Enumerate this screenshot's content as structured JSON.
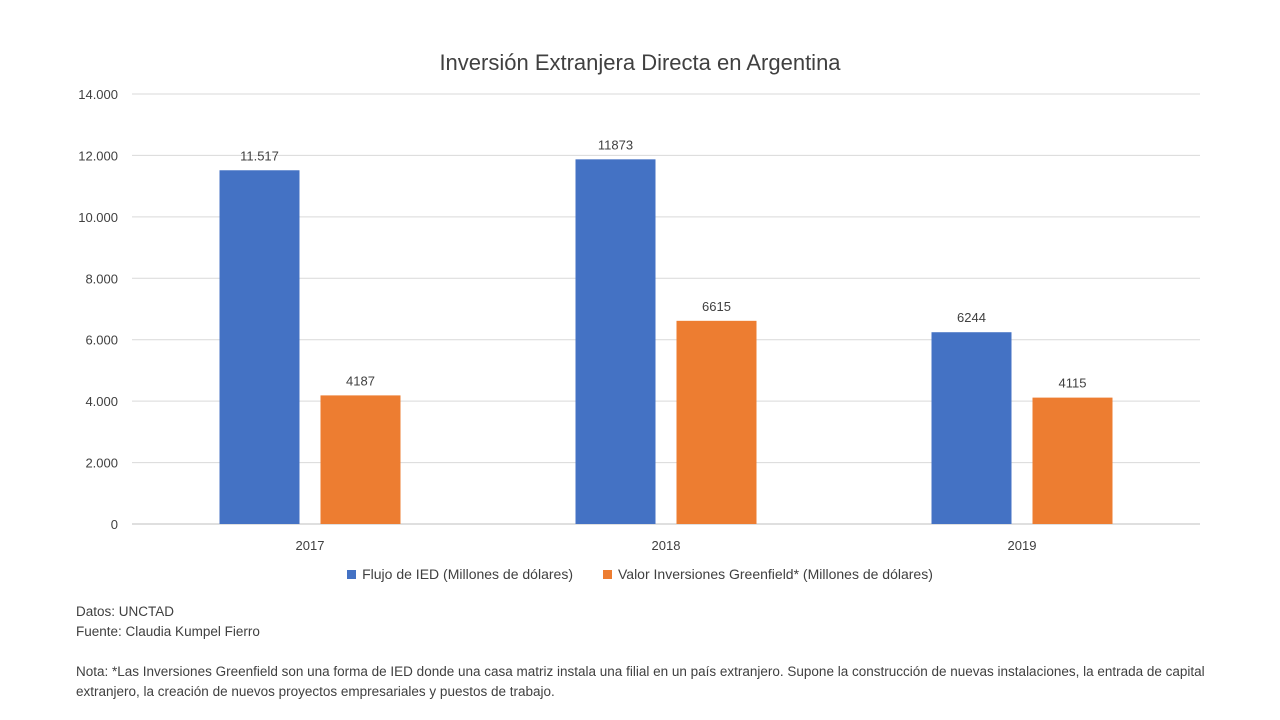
{
  "chart_data": {
    "type": "bar",
    "title": "Inversión Extranjera Directa en Argentina",
    "categories": [
      "2017",
      "2018",
      "2019"
    ],
    "series": [
      {
        "name": "Flujo de IED (Millones de dólares)",
        "values": [
          11517,
          11873,
          6244
        ],
        "labels": [
          "11.517",
          "11873",
          "6244"
        ],
        "color": "#4472C4"
      },
      {
        "name": "Valor Inversiones Greenfield* (Millones de dólares)",
        "values": [
          4187,
          6615,
          4115
        ],
        "labels": [
          "4187",
          "6615",
          "4115"
        ],
        "color": "#ED7D31"
      }
    ],
    "ylim": [
      0,
      14000
    ],
    "yticks": [
      0,
      2000,
      4000,
      6000,
      8000,
      10000,
      12000,
      14000
    ],
    "ytick_labels": [
      "0",
      "2.000",
      "4.000",
      "6.000",
      "8.000",
      "10.000",
      "12.000",
      "14.000"
    ],
    "grid": true,
    "legend_position": "bottom"
  },
  "footer": {
    "datos": "Datos: UNCTAD",
    "fuente": "Fuente: Claudia Kumpel Fierro",
    "nota": "Nota: *Las Inversiones Greenfield son una forma de IED donde una casa matriz instala una filial en un país extranjero. Supone la construcción de nuevas instalaciones, la entrada de capital extranjero, la creación de nuevos proyectos empresariales y puestos de trabajo."
  }
}
